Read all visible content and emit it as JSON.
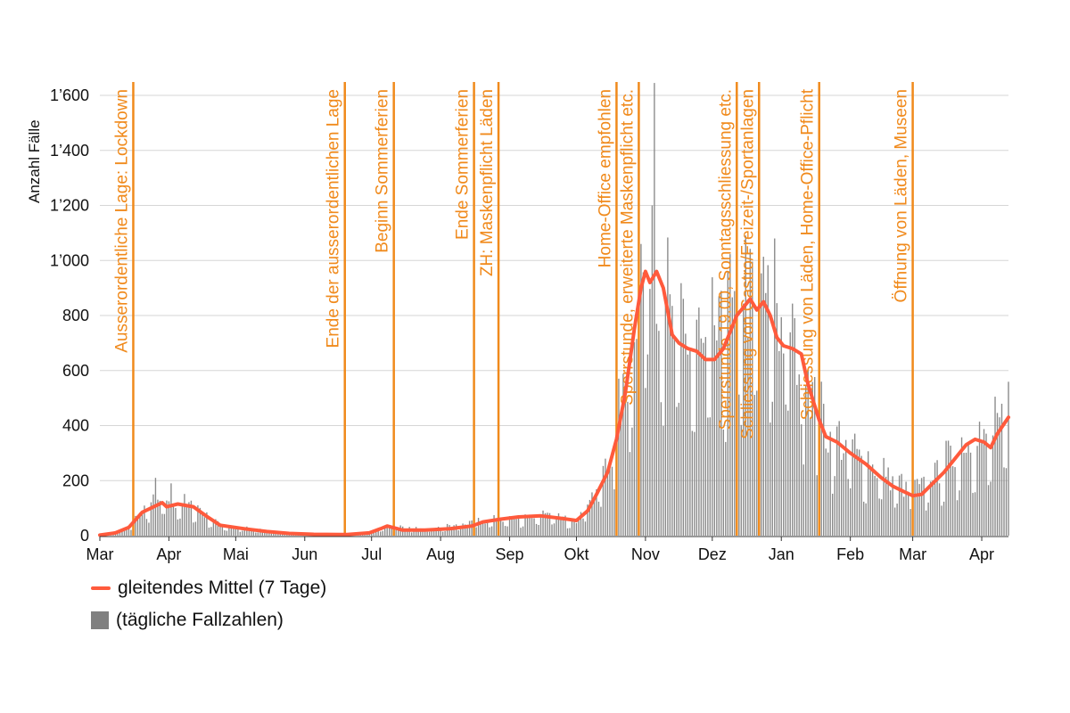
{
  "chart_data": {
    "type": "bar",
    "ylabel": "Anzahl Fälle",
    "ylim": [
      0,
      1650
    ],
    "yticks": [
      0,
      200,
      400,
      600,
      800,
      1000,
      1200,
      1400,
      1600
    ],
    "ytick_labels": [
      "0",
      "200",
      "400",
      "600",
      "800",
      "1’000",
      "1’200",
      "1’400",
      "1’600"
    ],
    "x_domain": [
      "2020-03-01",
      "2021-04-13"
    ],
    "x_ticks": [
      {
        "date": "2020-03-01",
        "label": "Mar"
      },
      {
        "date": "2020-04-01",
        "label": "Apr"
      },
      {
        "date": "2020-05-01",
        "label": "Mai"
      },
      {
        "date": "2020-06-01",
        "label": "Jun"
      },
      {
        "date": "2020-07-01",
        "label": "Jul"
      },
      {
        "date": "2020-08-01",
        "label": "Aug"
      },
      {
        "date": "2020-09-01",
        "label": "Sep"
      },
      {
        "date": "2020-10-01",
        "label": "Okt"
      },
      {
        "date": "2020-11-01",
        "label": "Nov"
      },
      {
        "date": "2020-12-01",
        "label": "Dez"
      },
      {
        "date": "2021-01-01",
        "label": "Jan"
      },
      {
        "date": "2021-02-01",
        "label": "Feb"
      },
      {
        "date": "2021-03-01",
        "label": "Mar"
      },
      {
        "date": "2021-04-01",
        "label": "Apr"
      }
    ],
    "grid": true,
    "legend_position": "bottom-left",
    "series": [
      {
        "name": "gleitendes Mittel (7 Tage)",
        "type": "line",
        "color": "#ff5a3c",
        "points": [
          [
            "2020-03-01",
            2
          ],
          [
            "2020-03-08",
            10
          ],
          [
            "2020-03-14",
            30
          ],
          [
            "2020-03-20",
            85
          ],
          [
            "2020-03-27",
            112
          ],
          [
            "2020-03-29",
            120
          ],
          [
            "2020-03-31",
            105
          ],
          [
            "2020-04-05",
            115
          ],
          [
            "2020-04-12",
            105
          ],
          [
            "2020-04-18",
            70
          ],
          [
            "2020-04-24",
            38
          ],
          [
            "2020-05-05",
            25
          ],
          [
            "2020-05-15",
            15
          ],
          [
            "2020-05-25",
            8
          ],
          [
            "2020-06-05",
            5
          ],
          [
            "2020-06-20",
            4
          ],
          [
            "2020-06-30",
            10
          ],
          [
            "2020-07-05",
            25
          ],
          [
            "2020-07-08",
            35
          ],
          [
            "2020-07-15",
            20
          ],
          [
            "2020-07-25",
            20
          ],
          [
            "2020-08-05",
            25
          ],
          [
            "2020-08-15",
            35
          ],
          [
            "2020-08-20",
            50
          ],
          [
            "2020-08-28",
            60
          ],
          [
            "2020-09-05",
            68
          ],
          [
            "2020-09-15",
            72
          ],
          [
            "2020-09-25",
            62
          ],
          [
            "2020-10-01",
            55
          ],
          [
            "2020-10-06",
            90
          ],
          [
            "2020-10-10",
            150
          ],
          [
            "2020-10-15",
            230
          ],
          [
            "2020-10-19",
            350
          ],
          [
            "2020-10-23",
            520
          ],
          [
            "2020-10-27",
            750
          ],
          [
            "2020-10-30",
            900
          ],
          [
            "2020-11-01",
            960
          ],
          [
            "2020-11-03",
            920
          ],
          [
            "2020-11-06",
            960
          ],
          [
            "2020-11-09",
            900
          ],
          [
            "2020-11-13",
            730
          ],
          [
            "2020-11-16",
            700
          ],
          [
            "2020-11-20",
            680
          ],
          [
            "2020-11-24",
            670
          ],
          [
            "2020-11-28",
            640
          ],
          [
            "2020-12-02",
            640
          ],
          [
            "2020-12-06",
            680
          ],
          [
            "2020-12-09",
            740
          ],
          [
            "2020-12-12",
            800
          ],
          [
            "2020-12-15",
            830
          ],
          [
            "2020-12-18",
            860
          ],
          [
            "2020-12-21",
            820
          ],
          [
            "2020-12-24",
            850
          ],
          [
            "2020-12-27",
            800
          ],
          [
            "2020-12-30",
            720
          ],
          [
            "2021-01-02",
            690
          ],
          [
            "2021-01-06",
            680
          ],
          [
            "2021-01-10",
            660
          ],
          [
            "2021-01-13",
            550
          ],
          [
            "2021-01-18",
            420
          ],
          [
            "2021-01-21",
            360
          ],
          [
            "2021-01-26",
            340
          ],
          [
            "2021-02-01",
            300
          ],
          [
            "2021-02-08",
            260
          ],
          [
            "2021-02-15",
            210
          ],
          [
            "2021-02-20",
            180
          ],
          [
            "2021-02-25",
            160
          ],
          [
            "2021-03-01",
            145
          ],
          [
            "2021-03-05",
            150
          ],
          [
            "2021-03-10",
            190
          ],
          [
            "2021-03-15",
            230
          ],
          [
            "2021-03-20",
            280
          ],
          [
            "2021-03-25",
            330
          ],
          [
            "2021-03-29",
            350
          ],
          [
            "2021-04-02",
            340
          ],
          [
            "2021-04-05",
            320
          ],
          [
            "2021-04-08",
            370
          ],
          [
            "2021-04-13",
            430
          ]
        ]
      },
      {
        "name": "(tägliche Fallzahlen)",
        "type": "bar",
        "color": "#8a8a8a",
        "profile_points": [
          [
            "2020-03-01",
            2
          ],
          [
            "2020-03-08",
            10
          ],
          [
            "2020-03-14",
            30
          ],
          [
            "2020-03-20",
            85
          ],
          [
            "2020-03-27",
            120
          ],
          [
            "2020-04-05",
            115
          ],
          [
            "2020-04-12",
            105
          ],
          [
            "2020-04-18",
            70
          ],
          [
            "2020-04-24",
            38
          ],
          [
            "2020-05-15",
            15
          ],
          [
            "2020-06-05",
            5
          ],
          [
            "2020-06-30",
            10
          ],
          [
            "2020-07-08",
            35
          ],
          [
            "2020-07-25",
            20
          ],
          [
            "2020-08-20",
            50
          ],
          [
            "2020-09-15",
            72
          ],
          [
            "2020-10-01",
            55
          ],
          [
            "2020-10-15",
            230
          ],
          [
            "2020-10-23",
            520
          ],
          [
            "2020-11-01",
            960
          ],
          [
            "2020-11-06",
            960
          ],
          [
            "2020-11-13",
            730
          ],
          [
            "2020-11-28",
            640
          ],
          [
            "2020-12-15",
            830
          ],
          [
            "2020-12-18",
            860
          ],
          [
            "2020-12-24",
            850
          ],
          [
            "2021-01-06",
            680
          ],
          [
            "2021-01-13",
            550
          ],
          [
            "2021-01-21",
            360
          ],
          [
            "2021-02-08",
            260
          ],
          [
            "2021-03-01",
            145
          ],
          [
            "2021-03-20",
            280
          ],
          [
            "2021-03-29",
            350
          ],
          [
            "2021-04-05",
            320
          ],
          [
            "2021-04-13",
            430
          ]
        ],
        "peaks": [
          [
            "2020-03-26",
            210
          ],
          [
            "2020-04-02",
            190
          ],
          [
            "2020-10-30",
            1060
          ],
          [
            "2020-11-05",
            1645
          ],
          [
            "2020-11-04",
            1200
          ],
          [
            "2020-12-08",
            960
          ],
          [
            "2020-12-22",
            1210
          ],
          [
            "2020-12-29",
            1080
          ],
          [
            "2021-04-07",
            505
          ]
        ]
      }
    ],
    "events": [
      {
        "date": "2020-03-16",
        "label": "Ausserordentliche Lage: Lockdown"
      },
      {
        "date": "2020-06-19",
        "label": "Ende der ausserordentlichen Lage"
      },
      {
        "date": "2020-07-11",
        "label": "Beginn Sommerferien"
      },
      {
        "date": "2020-08-16",
        "label": "Ende Sommerferien"
      },
      {
        "date": "2020-08-27",
        "label": "ZH: Maskenpflicht Läden"
      },
      {
        "date": "2020-10-19",
        "label": "Home-Office empfohlen"
      },
      {
        "date": "2020-10-29",
        "label": "Sperrstunde, erweiterte Maskenpflicht etc."
      },
      {
        "date": "2020-12-12",
        "label": "Sperrstunde 19.00, Sonntagsschliessung etc."
      },
      {
        "date": "2020-12-22",
        "label": "Schliessung von Gastro/Freizeit-/Sportanlagen"
      },
      {
        "date": "2021-01-18",
        "label": "Schliessung von Läden, Home-Office-Pflicht"
      },
      {
        "date": "2021-03-01",
        "label": "Öffnung von Läden, Museen"
      }
    ],
    "event_color": "#f08a1c"
  },
  "legend": {
    "line_label": "gleitendes Mittel (7 Tage)",
    "bar_label": "(tägliche Fallzahlen)",
    "line_color": "#ff5a3c",
    "bar_color": "#808080"
  }
}
